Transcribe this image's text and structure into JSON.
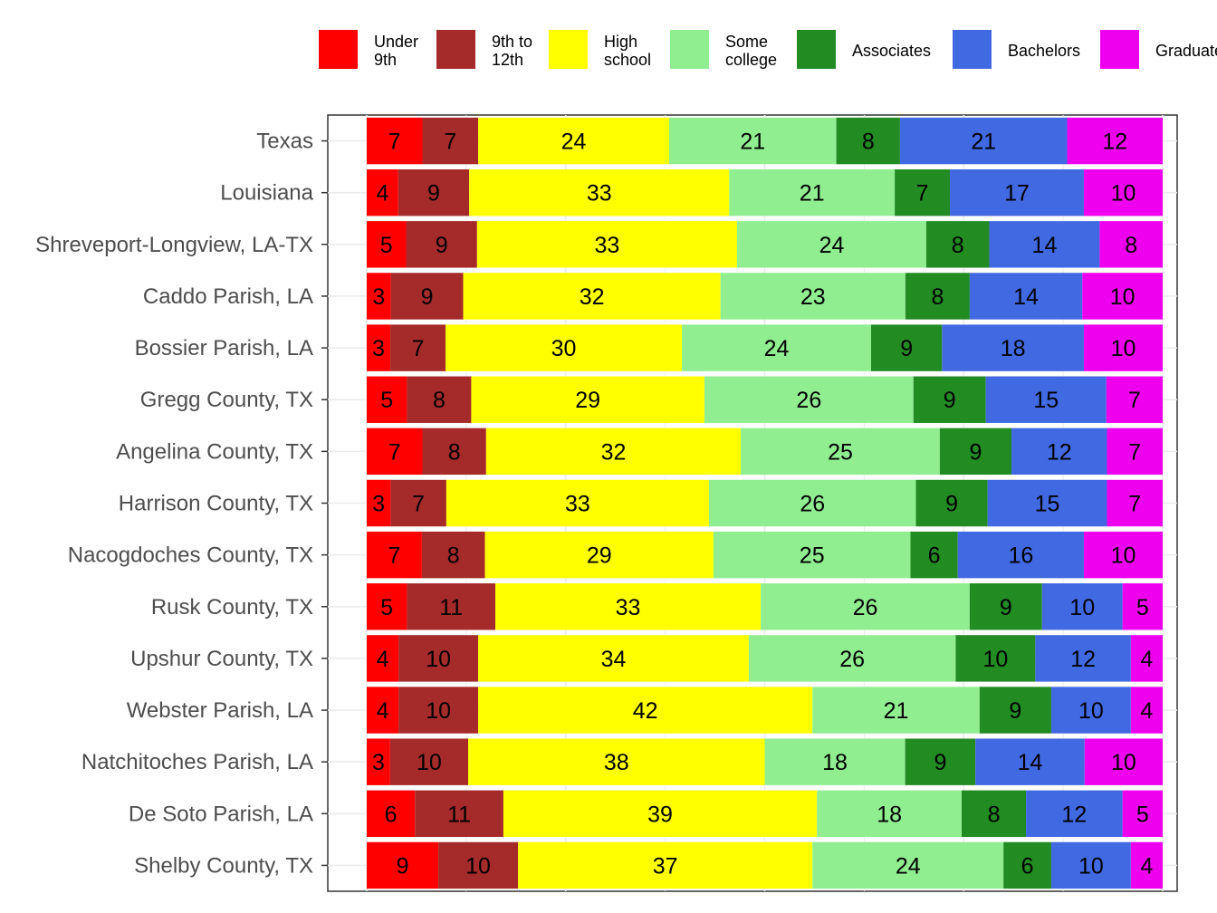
{
  "chart_data": {
    "type": "bar",
    "orientation": "horizontal",
    "stacked": true,
    "normalized": true,
    "title": "",
    "xlabel": "",
    "ylabel": "",
    "xlim": [
      0,
      100
    ],
    "grid": true,
    "legend_position": "top",
    "categories": [
      "Texas",
      "Louisiana",
      "Shreveport-Longview, LA-TX",
      "Caddo Parish, LA",
      "Bossier Parish, LA",
      "Gregg County, TX",
      "Angelina County, TX",
      "Harrison County, TX",
      "Nacogdoches County, TX",
      "Rusk County, TX",
      "Upshur County, TX",
      "Webster Parish, LA",
      "Natchitoches Parish, LA",
      "De Soto Parish, LA",
      "Shelby County, TX"
    ],
    "series": [
      {
        "name": "Under 9th",
        "legend_lines": [
          "Under",
          "9th"
        ],
        "color": "#ff0000",
        "values": [
          7,
          4,
          5,
          3,
          3,
          5,
          7,
          3,
          7,
          5,
          4,
          4,
          3,
          6,
          9
        ]
      },
      {
        "name": "9th to 12th",
        "legend_lines": [
          "9th to",
          "12th"
        ],
        "color": "#a52a2a",
        "values": [
          7,
          9,
          9,
          9,
          7,
          8,
          8,
          7,
          8,
          11,
          10,
          10,
          10,
          11,
          10
        ]
      },
      {
        "name": "High school",
        "legend_lines": [
          "High",
          "school"
        ],
        "color": "#ffff00",
        "values": [
          24,
          33,
          33,
          32,
          30,
          29,
          32,
          33,
          29,
          33,
          34,
          42,
          38,
          39,
          37
        ]
      },
      {
        "name": "Some college",
        "legend_lines": [
          "Some",
          "college"
        ],
        "color": "#90ee90",
        "values": [
          21,
          21,
          24,
          23,
          24,
          26,
          25,
          26,
          25,
          26,
          26,
          21,
          18,
          18,
          24
        ]
      },
      {
        "name": "Associates",
        "legend_lines": [
          "Associates"
        ],
        "color": "#228b22",
        "values": [
          8,
          7,
          8,
          8,
          9,
          9,
          9,
          9,
          6,
          9,
          10,
          9,
          9,
          8,
          6
        ]
      },
      {
        "name": "Bachelors",
        "legend_lines": [
          "Bachelors"
        ],
        "color": "#4169e1",
        "values": [
          21,
          17,
          14,
          14,
          18,
          15,
          12,
          15,
          16,
          10,
          12,
          10,
          14,
          12,
          10
        ]
      },
      {
        "name": "Graduate",
        "legend_lines": [
          "Graduate"
        ],
        "color": "#ee00ee",
        "values": [
          12,
          10,
          8,
          10,
          10,
          7,
          7,
          7,
          10,
          5,
          4,
          4,
          10,
          5,
          4
        ]
      }
    ]
  }
}
